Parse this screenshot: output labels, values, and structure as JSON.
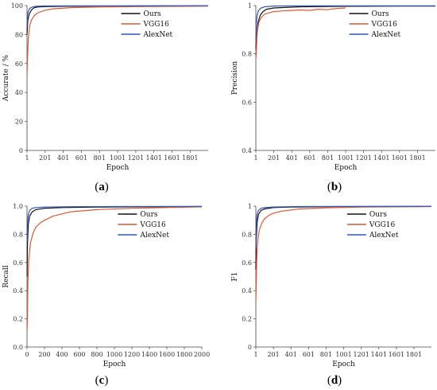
{
  "colors": {
    "ours": "#111111",
    "vgg": "#e3572e",
    "alex": "#2f55c4",
    "axis": "#444444"
  },
  "chart_data": [
    {
      "type": "line",
      "panel_label": "a",
      "xlabel": "Epoch",
      "ylabel": "Accurate / %",
      "xlim": [
        1,
        2000
      ],
      "ylim": [
        0,
        100
      ],
      "xticks": [
        1,
        201,
        401,
        601,
        801,
        1001,
        1201,
        1401,
        1601,
        1801
      ],
      "xtick_labels": [
        "1",
        "201",
        "401",
        "601",
        "801",
        "1001",
        "1201",
        "1401",
        "1601",
        "1801"
      ],
      "yticks": [
        0,
        20,
        40,
        60,
        80,
        100
      ],
      "ytick_labels": [
        "0",
        "20",
        "40",
        "60",
        "80",
        "100"
      ],
      "legend": "top-right",
      "series": [
        {
          "name": "Ours",
          "color_key": "ours",
          "x": [
            1,
            10,
            25,
            50,
            80,
            120,
            200,
            400,
            800,
            1200,
            2000
          ],
          "y": [
            80,
            90,
            94,
            97,
            98.5,
            99,
            99.3,
            99.5,
            99.6,
            99.7,
            99.8
          ]
        },
        {
          "name": "VGG16",
          "color_key": "vgg",
          "x": [
            1,
            5,
            15,
            30,
            50,
            80,
            120,
            200,
            300,
            500,
            800,
            1200,
            2000
          ],
          "y": [
            52,
            62,
            77,
            86,
            90,
            93,
            95,
            96.8,
            97.8,
            98.6,
            99,
            99.3,
            99.6
          ]
        },
        {
          "name": "AlexNet",
          "color_key": "alex",
          "x": [
            1,
            5,
            15,
            30,
            60,
            100,
            200,
            500,
            1000,
            2000
          ],
          "y": [
            85,
            93,
            96,
            98,
            99,
            99.5,
            99.7,
            99.8,
            99.8,
            99.9
          ]
        }
      ]
    },
    {
      "type": "line",
      "panel_label": "b",
      "xlabel": "Epoch",
      "ylabel": "Precision",
      "xlim": [
        1,
        2000
      ],
      "ylim": [
        0.4,
        1.0
      ],
      "xticks": [
        1,
        201,
        401,
        601,
        801,
        1001,
        1201,
        1401,
        1601,
        1801
      ],
      "xtick_labels": [
        "1",
        "201",
        "401",
        "601",
        "801",
        "1001",
        "1201",
        "1401",
        "1601",
        "1801"
      ],
      "yticks": [
        0.4,
        0.6,
        0.8,
        1.0
      ],
      "ytick_labels": [
        "0.4",
        "0.6",
        "0.8",
        "1"
      ],
      "legend": "top-right",
      "series": [
        {
          "name": "Ours",
          "color_key": "ours",
          "x": [
            1,
            10,
            25,
            50,
            80,
            120,
            200,
            500,
            1000,
            2000
          ],
          "y": [
            0.82,
            0.88,
            0.93,
            0.96,
            0.975,
            0.985,
            0.99,
            0.995,
            0.997,
            0.998
          ]
        },
        {
          "name": "VGG16",
          "color_key": "vgg",
          "x": [
            1,
            5,
            12,
            20,
            35,
            60,
            100,
            150,
            200,
            300,
            400,
            500,
            600,
            700,
            800,
            900,
            1000
          ],
          "y": [
            0.78,
            0.8,
            0.86,
            0.9,
            0.93,
            0.95,
            0.965,
            0.97,
            0.975,
            0.978,
            0.98,
            0.982,
            0.98,
            0.985,
            0.983,
            0.988,
            0.99
          ]
        },
        {
          "name": "AlexNet",
          "color_key": "alex",
          "x": [
            1,
            5,
            15,
            30,
            60,
            100,
            200,
            500,
            1000,
            2000
          ],
          "y": [
            0.86,
            0.92,
            0.96,
            0.98,
            0.99,
            0.995,
            0.998,
            0.999,
            0.999,
            0.999
          ]
        }
      ]
    },
    {
      "type": "line",
      "panel_label": "c",
      "xlabel": "Epoch",
      "ylabel": "Recall",
      "xlim": [
        0,
        2000
      ],
      "ylim": [
        0,
        1.0
      ],
      "xticks": [
        0,
        200,
        400,
        600,
        800,
        1000,
        1200,
        1400,
        1600,
        1800,
        2000
      ],
      "xtick_labels": [
        "0",
        "200",
        "400",
        "600",
        "800",
        "1000",
        "1200",
        "1400",
        "1600",
        "1800",
        "2000"
      ],
      "yticks": [
        0,
        0.2,
        0.4,
        0.6,
        0.8,
        1.0
      ],
      "ytick_labels": [
        "0.0",
        "0.2",
        "0.4",
        "0.6",
        "0.8",
        "1.0"
      ],
      "legend": "top-right",
      "series": [
        {
          "name": "Ours",
          "color_key": "ours",
          "x": [
            1,
            5,
            15,
            30,
            60,
            100,
            200,
            400,
            800,
            1200,
            2000
          ],
          "y": [
            0.5,
            0.72,
            0.87,
            0.93,
            0.96,
            0.975,
            0.985,
            0.99,
            0.993,
            0.995,
            0.997
          ]
        },
        {
          "name": "VGG16",
          "color_key": "vgg",
          "x": [
            1,
            5,
            10,
            20,
            40,
            70,
            100,
            150,
            200,
            300,
            500,
            800,
            1200,
            1600,
            2000
          ],
          "y": [
            0.12,
            0.2,
            0.45,
            0.62,
            0.74,
            0.81,
            0.85,
            0.88,
            0.9,
            0.93,
            0.96,
            0.975,
            0.985,
            0.99,
            0.995
          ]
        },
        {
          "name": "AlexNet",
          "color_key": "alex",
          "x": [
            1,
            5,
            15,
            30,
            60,
            100,
            200,
            500,
            1000,
            2000
          ],
          "y": [
            0.75,
            0.88,
            0.94,
            0.97,
            0.985,
            0.99,
            0.993,
            0.996,
            0.997,
            0.998
          ]
        }
      ]
    },
    {
      "type": "line",
      "panel_label": "d",
      "xlabel": "Epoch",
      "ylabel": "F1",
      "xlim": [
        1,
        2000
      ],
      "ylim": [
        0,
        1.0
      ],
      "xticks": [
        1,
        201,
        401,
        601,
        801,
        1001,
        1201,
        1401,
        1601,
        1801
      ],
      "xtick_labels": [
        "1",
        "201",
        "401",
        "601",
        "801",
        "1001",
        "1201",
        "1401",
        "1601",
        "1801"
      ],
      "yticks": [
        0,
        0.2,
        0.4,
        0.6,
        0.8,
        1.0
      ],
      "ytick_labels": [
        "0",
        "0.2",
        "0.4",
        "0.6",
        "0.8",
        "1"
      ],
      "legend": "top-right",
      "series": [
        {
          "name": "Ours",
          "color_key": "ours",
          "x": [
            1,
            5,
            15,
            30,
            60,
            100,
            200,
            400,
            800,
            2000
          ],
          "y": [
            0.55,
            0.75,
            0.88,
            0.94,
            0.97,
            0.98,
            0.99,
            0.993,
            0.996,
            0.998
          ]
        },
        {
          "name": "VGG16",
          "color_key": "vgg",
          "x": [
            1,
            5,
            10,
            20,
            40,
            70,
            100,
            150,
            200,
            300,
            500,
            800,
            1200,
            2000
          ],
          "y": [
            0.32,
            0.42,
            0.6,
            0.74,
            0.83,
            0.88,
            0.91,
            0.935,
            0.95,
            0.965,
            0.98,
            0.988,
            0.993,
            0.997
          ]
        },
        {
          "name": "AlexNet",
          "color_key": "alex",
          "x": [
            1,
            5,
            15,
            30,
            60,
            100,
            200,
            500,
            1000,
            2000
          ],
          "y": [
            0.7,
            0.87,
            0.94,
            0.97,
            0.985,
            0.99,
            0.994,
            0.997,
            0.998,
            0.999
          ]
        }
      ]
    }
  ]
}
